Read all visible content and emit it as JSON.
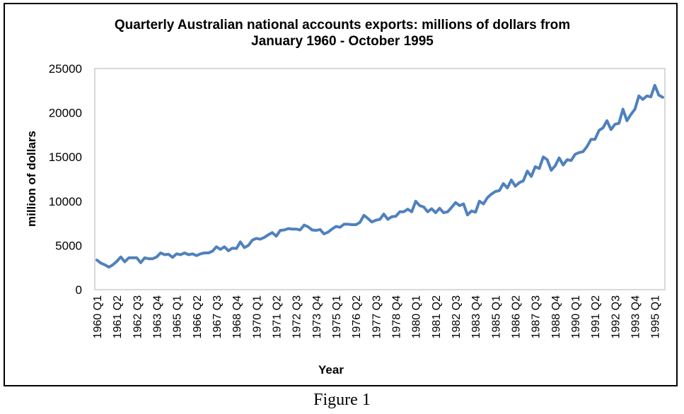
{
  "chart_data": {
    "type": "line",
    "title": "Quarterly Australian national accounts exports: millions of dollars from",
    "subtitle": "January 1960 - October 1995",
    "xlabel": "Year",
    "ylabel": "million of dollars",
    "ylim": [
      0,
      25000
    ],
    "yticks": [
      "0",
      "5000",
      "10000",
      "15000",
      "20000",
      "25000"
    ],
    "xtick_labels": [
      "1960 Q1",
      "1961 Q2",
      "1962 Q3",
      "1963 Q4",
      "1965 Q1",
      "1966 Q2",
      "1967 Q3",
      "1968 Q4",
      "1970 Q1",
      "1971 Q2",
      "1972 Q3",
      "1973 Q4",
      "1975 Q1",
      "1976 Q2",
      "1977 Q3",
      "1978 Q4",
      "1980 Q1",
      "1981 Q2",
      "1982 Q3",
      "1983 Q4",
      "1985 Q1",
      "1986 Q2",
      "1987 Q3",
      "1988 Q4",
      "1990 Q1",
      "1991 Q2",
      "1992 Q3",
      "1993 Q4",
      "1995 Q1"
    ],
    "grid": false,
    "legend": "none",
    "color": "#4f81bd",
    "series": [
      {
        "values": [
          3350,
          3000,
          2800,
          2550,
          2800,
          3200,
          3700,
          3150,
          3600,
          3600,
          3600,
          3050,
          3600,
          3500,
          3500,
          3700,
          4150,
          3950,
          4000,
          3650,
          4050,
          3950,
          4150,
          3950,
          4050,
          3850,
          4050,
          4150,
          4150,
          4350,
          4850,
          4550,
          4850,
          4400,
          4700,
          4650,
          5400,
          4750,
          5000,
          5600,
          5800,
          5700,
          5900,
          6200,
          6450,
          6050,
          6700,
          6750,
          6900,
          6850,
          6850,
          6750,
          7300,
          7100,
          6750,
          6700,
          6800,
          6300,
          6500,
          6850,
          7150,
          7050,
          7400,
          7400,
          7350,
          7350,
          7600,
          8400,
          8050,
          7650,
          7850,
          7950,
          8550,
          7950,
          8250,
          8300,
          8800,
          8800,
          9100,
          8800,
          10000,
          9500,
          9350,
          8800,
          9150,
          8700,
          9200,
          8700,
          8800,
          9300,
          9850,
          9500,
          9700,
          8450,
          8900,
          8750,
          10000,
          9700,
          10400,
          10800,
          11100,
          11200,
          12000,
          11500,
          12400,
          11700,
          12100,
          12300,
          13400,
          12800,
          13900,
          13700,
          15000,
          14700,
          13500,
          14000,
          14900,
          14100,
          14700,
          14600,
          15300,
          15500,
          15600,
          16200,
          17000,
          17000,
          18000,
          18300,
          19100,
          18100,
          18700,
          18800,
          20400,
          19100,
          19800,
          20400,
          21900,
          21500,
          21900,
          21800,
          23100,
          22000,
          21750
        ]
      }
    ]
  },
  "figure_caption": "Figure 1"
}
